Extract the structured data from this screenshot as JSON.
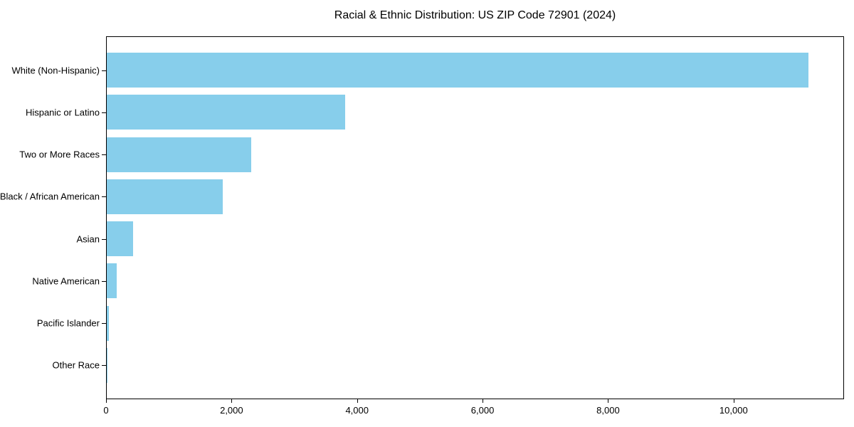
{
  "chart_data": {
    "type": "bar",
    "orientation": "horizontal",
    "title": "Racial & Ethnic Distribution: US ZIP Code 72901 (2024)",
    "categories": [
      "White (Non-Hispanic)",
      "Hispanic or Latino",
      "Two or More Races",
      "Black / African American",
      "Asian",
      "Native American",
      "Pacific Islander",
      "Other Race"
    ],
    "values": [
      11200,
      3810,
      2310,
      1850,
      420,
      155,
      30,
      10
    ],
    "bar_color": "#87CEEB",
    "xlim": [
      0,
      11760
    ],
    "x_ticks": [
      0,
      2000,
      4000,
      6000,
      8000,
      10000
    ],
    "x_tick_labels": [
      "0",
      "2,000",
      "4,000",
      "6,000",
      "8,000",
      "10,000"
    ],
    "xlabel": "",
    "ylabel": "",
    "grid": false,
    "legend": null,
    "spine_color": "#000000",
    "background_color": "#ffffff"
  }
}
